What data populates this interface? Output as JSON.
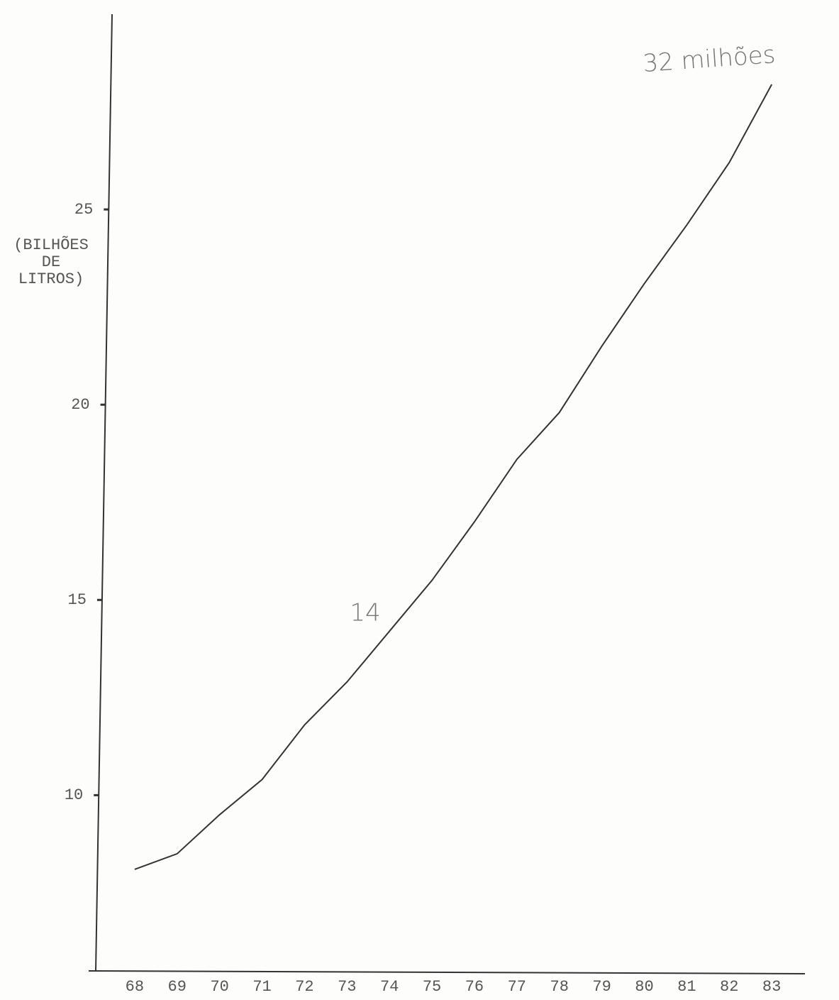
{
  "chart_data": {
    "type": "line",
    "ylabel": [
      "(BILHÕES",
      "DE",
      "LITROS)"
    ],
    "x": [
      68,
      69,
      70,
      71,
      72,
      73,
      74,
      75,
      76,
      77,
      78,
      79,
      80,
      81,
      82,
      83
    ],
    "values": [
      8.1,
      8.5,
      9.5,
      10.4,
      11.8,
      12.9,
      14.2,
      15.5,
      17.0,
      18.6,
      19.8,
      21.5,
      23.1,
      24.6,
      26.2,
      28.2
    ],
    "color": "#333333",
    "xlim": [
      67,
      84
    ],
    "xticks": [
      68,
      69,
      70,
      71,
      72,
      73,
      74,
      75,
      76,
      77,
      78,
      79,
      80,
      81,
      82,
      83
    ],
    "ylim": [
      5.5,
      30
    ],
    "yticks": [
      10,
      15,
      20,
      25
    ],
    "grid": false,
    "annotations": [
      "14",
      "32 milhões"
    ]
  }
}
